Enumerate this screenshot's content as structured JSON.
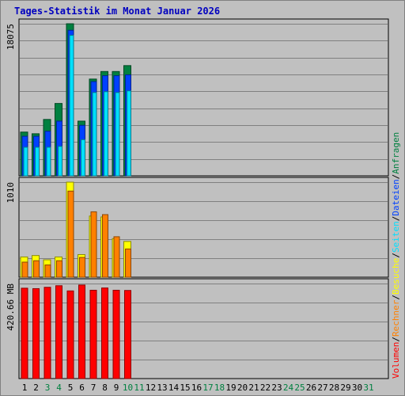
{
  "chart_data": {
    "title": "Tages-Statistik im Monat Januar 2026",
    "days": [
      "1",
      "2",
      "3",
      "4",
      "5",
      "6",
      "7",
      "8",
      "9",
      "10",
      "11",
      "12",
      "13",
      "14",
      "15",
      "16",
      "17",
      "18",
      "19",
      "20",
      "21",
      "22",
      "23",
      "24",
      "25",
      "26",
      "27",
      "28",
      "29",
      "30",
      "31"
    ],
    "weekend_days": [
      "3",
      "4",
      "10",
      "11",
      "17",
      "18",
      "24",
      "25",
      "31"
    ],
    "colors": {
      "background": "#c0c0c0",
      "grid": "#808080",
      "title": "#0000c0",
      "weekday_label": "#000000",
      "weekend_label": "#008040",
      "anfragen": "#008040",
      "dateien": "#0040ff",
      "seiten": "#00e0ff",
      "besuche": "#ffff00",
      "rechner": "#ff8000",
      "volumen": "#ff0000"
    },
    "panels": [
      {
        "id": "requests",
        "type": "bar",
        "max_label": "18075",
        "ymax": 18075,
        "series": [
          {
            "name": "Anfragen",
            "values": [
              5200,
              5000,
              6700,
              8600,
              18075,
              6500,
              11500,
              12400,
              12400,
              13100
            ]
          },
          {
            "name": "Dateien",
            "values": [
              4700,
              4700,
              5300,
              6500,
              17300,
              6000,
              11200,
              11900,
              11900,
              12000
            ]
          },
          {
            "name": "Seiten",
            "values": [
              3400,
              3400,
              3400,
              3500,
              16700,
              4300,
              9900,
              10000,
              9900,
              10100
            ]
          }
        ]
      },
      {
        "id": "visits",
        "type": "bar",
        "max_label": "1010",
        "ymax": 1010,
        "series": [
          {
            "name": "Besuche",
            "values": [
              215,
              230,
              185,
              215,
              1010,
              240,
              650,
              640,
              410,
              380
            ]
          },
          {
            "name": "Rechner",
            "values": [
              160,
              175,
              130,
              175,
              915,
              210,
              695,
              665,
              430,
              300
            ]
          }
        ]
      },
      {
        "id": "volume",
        "type": "bar",
        "max_label": "420.66 MB",
        "ymax": 420.66,
        "series": [
          {
            "name": "Volumen",
            "values": [
              400,
              398,
              404,
              411,
              388,
              414,
              391,
              401,
              391,
              390
            ]
          }
        ]
      }
    ],
    "legend": [
      {
        "label": "Volumen",
        "series": "volumen"
      },
      {
        "label": "Rechner",
        "series": "rechner"
      },
      {
        "label": "Besuche",
        "series": "besuche"
      },
      {
        "label": "Seiten",
        "series": "seiten"
      },
      {
        "label": "Dateien",
        "series": "dateien"
      },
      {
        "label": "Anfragen",
        "series": "anfragen"
      }
    ],
    "legend_separator": "/"
  }
}
